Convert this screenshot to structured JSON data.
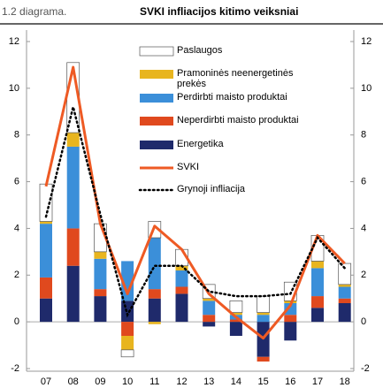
{
  "header": {
    "label": "1.2 diagrama.",
    "title": "SVKI infliacijos kitimo veiksniai"
  },
  "chart_data": {
    "type": "stacked-bar-line",
    "categories": [
      "07",
      "08",
      "09",
      "10",
      "11",
      "12",
      "13",
      "14",
      "15",
      "16",
      "17",
      "18"
    ],
    "series": [
      {
        "name": "Paslaugos",
        "color": "#ffffff",
        "values": [
          1.6,
          3.0,
          1.2,
          -0.3,
          0.7,
          0.7,
          0.6,
          0.5,
          0.7,
          0.8,
          1.1,
          0.9
        ]
      },
      {
        "name": "Pramoninės neenergetinės prekės",
        "color": "#e8b51f",
        "values": [
          0.1,
          0.6,
          0.3,
          -0.6,
          -0.1,
          0.2,
          0.1,
          0.1,
          0.1,
          0.1,
          0.3,
          0.1
        ]
      },
      {
        "name": "Perdirbti maisto produktai",
        "color": "#3b8fd9",
        "values": [
          2.3,
          3.5,
          1.3,
          1.7,
          2.2,
          0.7,
          0.6,
          0.2,
          0.3,
          0.5,
          1.2,
          0.5
        ]
      },
      {
        "name": "Neperdirbti maisto produktai",
        "color": "#e0491e",
        "values": [
          0.9,
          1.6,
          0.3,
          -0.6,
          0.4,
          0.3,
          0.3,
          0.1,
          -0.2,
          0.3,
          0.5,
          0.2
        ]
      },
      {
        "name": "Energetika",
        "color": "#1f2a6b",
        "values": [
          1.0,
          2.4,
          1.1,
          0.9,
          1.0,
          1.2,
          -0.2,
          -0.6,
          -1.5,
          -0.8,
          0.6,
          0.8
        ]
      },
      {
        "name": "SVKI",
        "color": "#ee5a24",
        "type": "line",
        "values": [
          5.8,
          10.9,
          4.2,
          1.2,
          4.1,
          3.1,
          1.2,
          0.2,
          -0.7,
          0.7,
          3.7,
          2.5
        ]
      },
      {
        "name": "Grynoji infliacija",
        "color": "#000000",
        "type": "dotted-line",
        "values": [
          4.5,
          9.2,
          4.6,
          0.3,
          2.4,
          2.4,
          1.3,
          1.1,
          1.1,
          1.2,
          3.6,
          2.3
        ]
      }
    ],
    "stack_order": [
      4,
      3,
      2,
      1,
      0
    ],
    "ylim": [
      -2,
      12
    ],
    "yticks": [
      -2,
      0,
      2,
      4,
      6,
      8,
      10,
      12
    ],
    "y2lim": [
      -2,
      12
    ],
    "y2ticks": [
      -2,
      0,
      2,
      4,
      6,
      8,
      10,
      12
    ]
  }
}
